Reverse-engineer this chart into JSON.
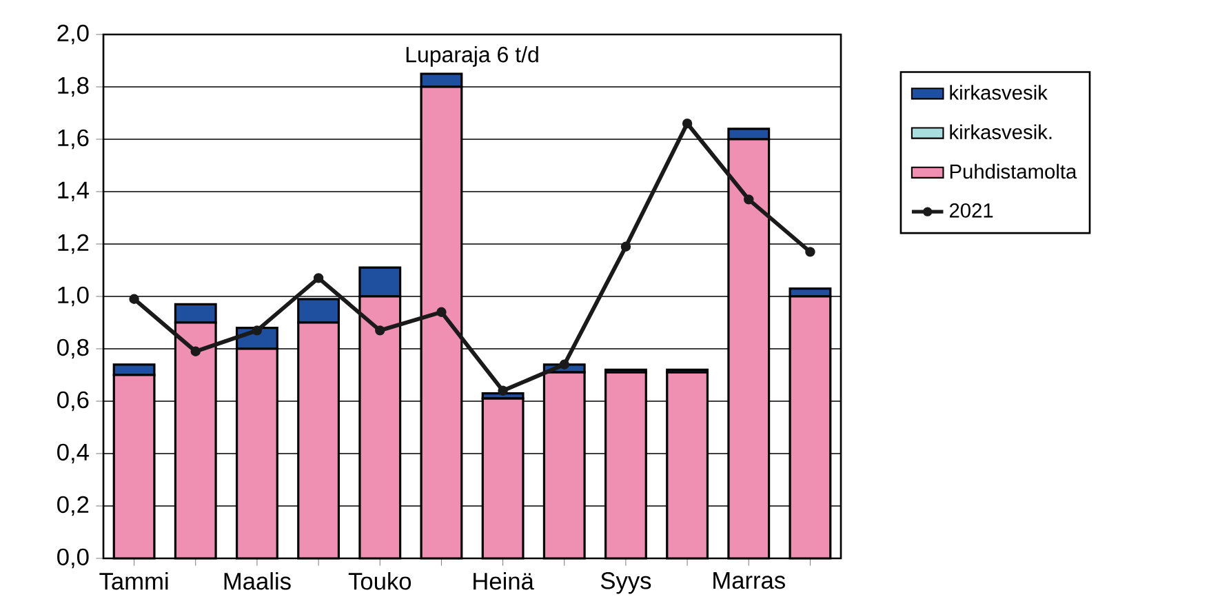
{
  "chart_data": {
    "type": "bar",
    "stacked": true,
    "categories": [
      "Tammi",
      null,
      "Maalis",
      null,
      "Touko",
      null,
      "Heinä",
      null,
      "Syys",
      null,
      "Marras",
      null
    ],
    "series": [
      {
        "name": "Puhdistamolta",
        "color": "#ef8fb2",
        "values": [
          0.7,
          0.9,
          0.8,
          0.9,
          1.0,
          1.8,
          0.61,
          0.71,
          0.71,
          0.71,
          1.6,
          1.0
        ]
      },
      {
        "name": "kirkasvesik.",
        "color": "#a8dede",
        "values": [
          0,
          0,
          0,
          0,
          0,
          0,
          0,
          0,
          0,
          0,
          0,
          0
        ]
      },
      {
        "name": "kirkasvesik",
        "color": "#1f50a0",
        "values": [
          0.04,
          0.07,
          0.08,
          0.09,
          0.11,
          0.05,
          0.02,
          0.03,
          0.01,
          0.01,
          0.04,
          0.03
        ]
      },
      {
        "name": "2021",
        "type": "line",
        "color": "#1a1a1a",
        "marker": "circle",
        "line_style": "solid",
        "values": [
          0.99,
          0.79,
          0.87,
          1.07,
          0.87,
          0.94,
          0.64,
          0.74,
          1.19,
          1.66,
          1.37,
          1.17
        ]
      }
    ],
    "ylim": [
      0,
      2.0
    ],
    "yticks": [
      {
        "value": 0,
        "label": "0,0"
      },
      {
        "value": 0.2,
        "label": "0,2"
      },
      {
        "value": 0.4,
        "label": "0,4"
      },
      {
        "value": 0.6,
        "label": "0,6"
      },
      {
        "value": 0.8,
        "label": "0,8"
      },
      {
        "value": 1.0,
        "label": "1,0"
      },
      {
        "value": 1.2,
        "label": "1,2"
      },
      {
        "value": 1.4,
        "label": "1,4"
      },
      {
        "value": 1.6,
        "label": "1,6"
      },
      {
        "value": 1.8,
        "label": "1,8"
      },
      {
        "value": 2.0,
        "label": "2,0"
      }
    ],
    "grid": "y",
    "legend": "right",
    "annotations": [
      "Luparaja 6 t/d"
    ]
  }
}
